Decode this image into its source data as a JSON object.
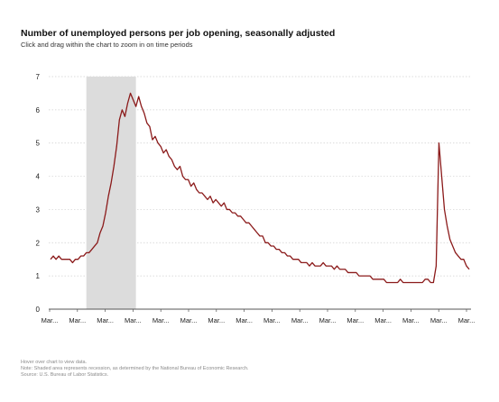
{
  "header": {
    "title": "Number of unemployed persons per job opening, seasonally adjusted",
    "subtitle": "Click and drag within the chart to zoom in on time periods"
  },
  "colors": {
    "series": "#8b1a1a",
    "recession_shade": "#dcdcdc",
    "gridline": "#cfcfcf",
    "axis": "#555555"
  },
  "chart_data": {
    "type": "line",
    "ylim": [
      0,
      7
    ],
    "y_ticks": [
      "0",
      "1",
      "2",
      "3",
      "4",
      "5",
      "6",
      "7"
    ],
    "x_tick_labels": [
      "Mar...",
      "Mar...",
      "Mar...",
      "Mar...",
      "Mar...",
      "Mar...",
      "Mar...",
      "Mar...",
      "Mar...",
      "Mar...",
      "Mar...",
      "Mar...",
      "Mar...",
      "Mar...",
      "Mar...",
      "Mar..."
    ],
    "grid": true,
    "legend": "none",
    "recession": {
      "start_index": 13,
      "end_index": 31
    },
    "series": [
      {
        "values": [
          1.5,
          1.6,
          1.5,
          1.6,
          1.5,
          1.5,
          1.5,
          1.5,
          1.4,
          1.5,
          1.5,
          1.6,
          1.6,
          1.7,
          1.7,
          1.8,
          1.9,
          2.0,
          2.3,
          2.5,
          2.9,
          3.4,
          3.8,
          4.3,
          4.9,
          5.7,
          6.0,
          5.8,
          6.2,
          6.5,
          6.3,
          6.1,
          6.4,
          6.1,
          5.9,
          5.6,
          5.5,
          5.1,
          5.2,
          5.0,
          4.9,
          4.7,
          4.8,
          4.6,
          4.5,
          4.3,
          4.2,
          4.3,
          4.0,
          3.9,
          3.9,
          3.7,
          3.8,
          3.6,
          3.5,
          3.5,
          3.4,
          3.3,
          3.4,
          3.2,
          3.3,
          3.2,
          3.1,
          3.2,
          3.0,
          3.0,
          2.9,
          2.9,
          2.8,
          2.8,
          2.7,
          2.6,
          2.6,
          2.5,
          2.4,
          2.3,
          2.2,
          2.2,
          2.0,
          2.0,
          1.9,
          1.9,
          1.8,
          1.8,
          1.7,
          1.7,
          1.6,
          1.6,
          1.5,
          1.5,
          1.5,
          1.4,
          1.4,
          1.4,
          1.3,
          1.4,
          1.3,
          1.3,
          1.3,
          1.4,
          1.3,
          1.3,
          1.3,
          1.2,
          1.3,
          1.2,
          1.2,
          1.2,
          1.1,
          1.1,
          1.1,
          1.1,
          1.0,
          1.0,
          1.0,
          1.0,
          1.0,
          0.9,
          0.9,
          0.9,
          0.9,
          0.9,
          0.8,
          0.8,
          0.8,
          0.8,
          0.8,
          0.9,
          0.8,
          0.8,
          0.8,
          0.8,
          0.8,
          0.8,
          0.8,
          0.8,
          0.9,
          0.9,
          0.8,
          0.8,
          1.3,
          5.0,
          4.0,
          3.0,
          2.5,
          2.1,
          1.9,
          1.7,
          1.6,
          1.5,
          1.5,
          1.3,
          1.2
        ]
      }
    ]
  },
  "footer": {
    "line1": "Hover over chart to view data.",
    "line2": "Note: Shaded area represents recession, as determined by the National Bureau of Economic Research.",
    "line3": "Source: U.S. Bureau of Labor Statistics."
  }
}
